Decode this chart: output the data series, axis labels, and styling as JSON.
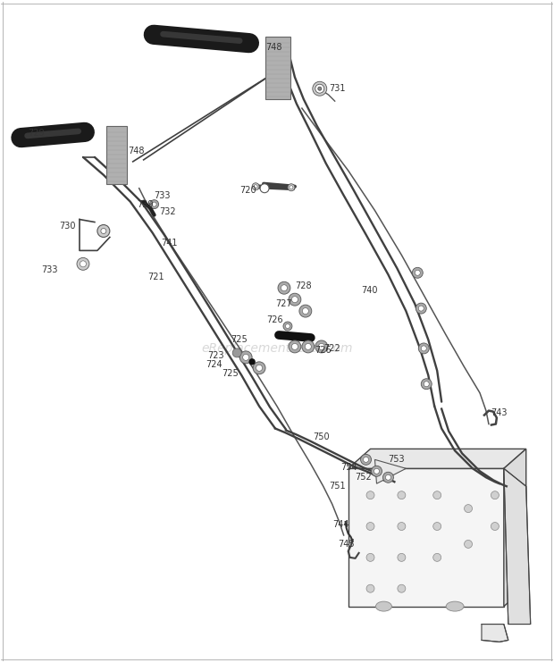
{
  "bg_color": "#ffffff",
  "watermark": "eReplacementParts.com",
  "watermark_color": "#c8c8c8",
  "watermark_fontsize": 10,
  "label_fontsize": 7,
  "label_color": "#333333",
  "line_color": "#404040",
  "thin_lw": 0.8,
  "med_lw": 1.2,
  "thick_lw": 2.0,
  "grip_color": "#1a1a1a",
  "frame_color": "#404040",
  "cable_color": "#555555",
  "part_gray": "#888888",
  "fastener_dark": "#1a1a1a",
  "fastener_med": "#666666",
  "fastener_light": "#aaaaaa",
  "box_face": "#f2f2f2",
  "box_edge": "#444444",
  "plate_fill": "#b0b0b0",
  "plate_edge": "#666666"
}
